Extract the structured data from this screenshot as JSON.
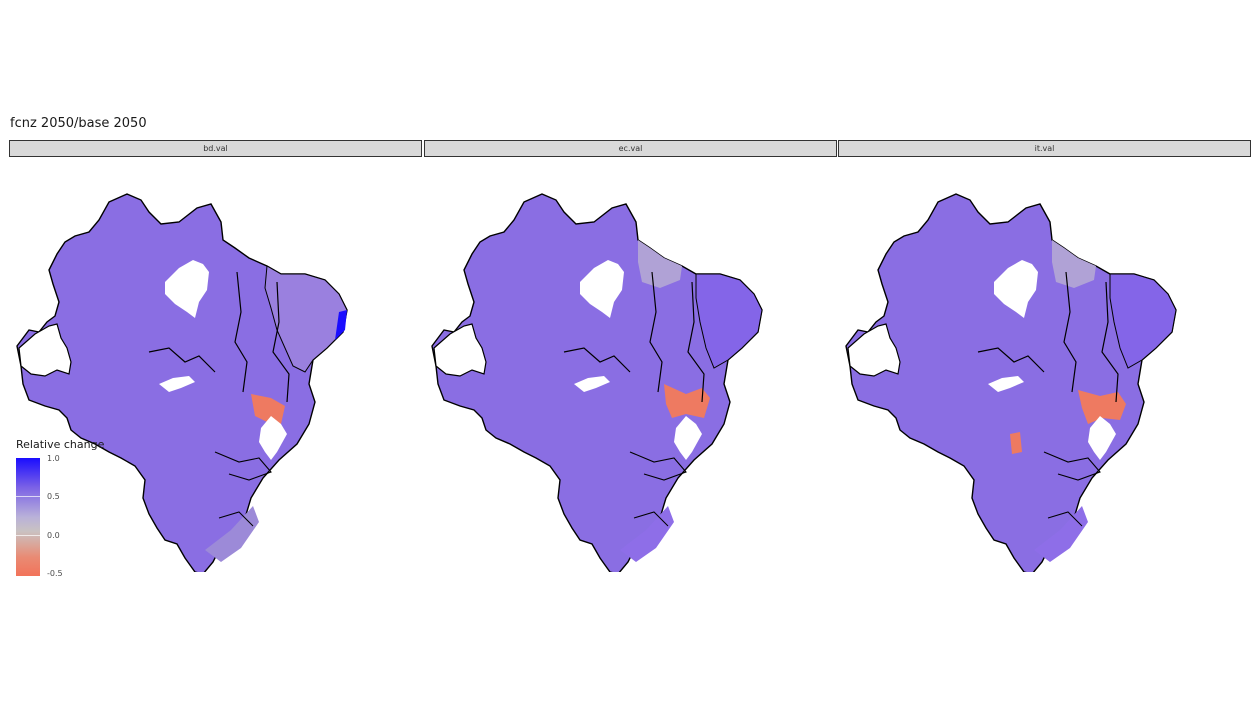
{
  "title": "fcnz 2050/base 2050",
  "panels": [
    {
      "label": "bd.val"
    },
    {
      "label": "ec.val"
    },
    {
      "label": "it.val"
    }
  ],
  "legend": {
    "title": "Relative change",
    "ticks": [
      "1.0",
      "0.5",
      "0.0",
      "-0.5"
    ],
    "colors": {
      "high": "#1a0dff",
      "mid_high": "#7b62e6",
      "zero": "#bdbdbd",
      "low": "#f2735a"
    }
  }
}
